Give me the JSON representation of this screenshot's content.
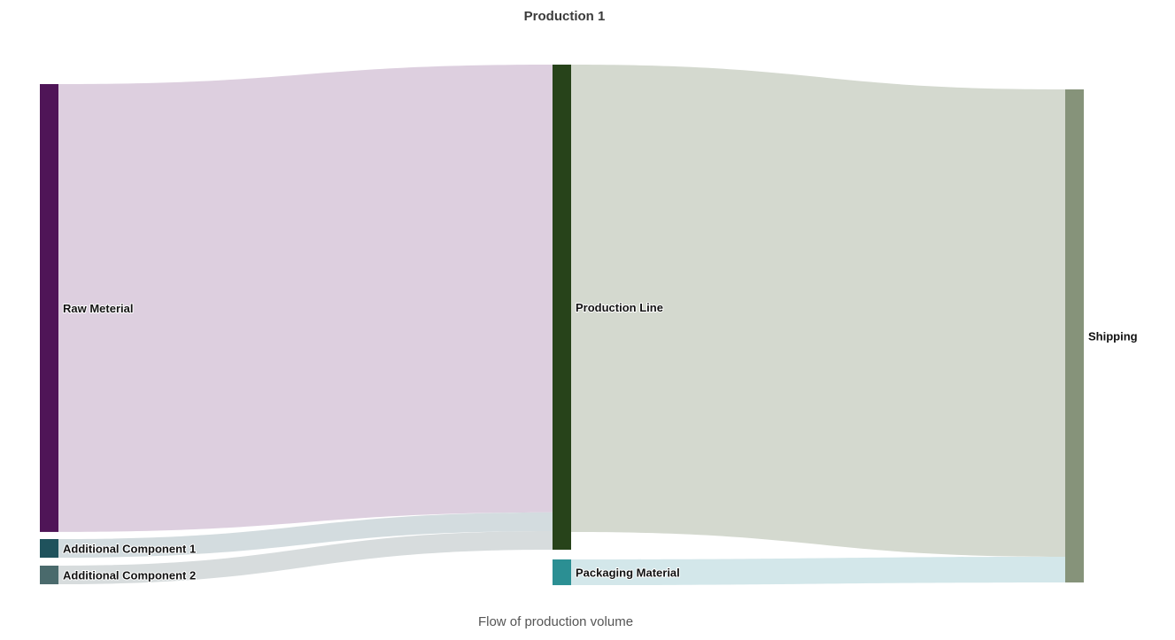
{
  "chart_data": {
    "type": "sankey",
    "title": "Production 1",
    "subtitle": "Flow of production volume",
    "nodes": [
      {
        "id": "raw",
        "label": "Raw Meterial",
        "column": 0,
        "color": "#4f1557"
      },
      {
        "id": "ac1",
        "label": "Additional Component 1",
        "column": 0,
        "color": "#1f525c"
      },
      {
        "id": "ac2",
        "label": "Additional Component 2",
        "column": 0,
        "color": "#4a6a6c"
      },
      {
        "id": "line",
        "label": "Production Line",
        "column": 1,
        "color": "#27431a"
      },
      {
        "id": "pack",
        "label": "Packaging Material",
        "column": 1,
        "color": "#2b8f93"
      },
      {
        "id": "ship",
        "label": "Shipping",
        "column": 2,
        "color": "#86937a"
      }
    ],
    "links": [
      {
        "source": "raw",
        "target": "line",
        "value": 505,
        "color": "#ddcfdf"
      },
      {
        "source": "ac1",
        "target": "line",
        "value": 21,
        "color": "#d3dcdf"
      },
      {
        "source": "ac2",
        "target": "line",
        "value": 21,
        "color": "#d7dcdd"
      },
      {
        "source": "line",
        "target": "ship",
        "value": 527,
        "color": "#d4d9cf"
      },
      {
        "source": "pack",
        "target": "ship",
        "value": 29,
        "color": "#d3e7ea"
      }
    ]
  }
}
